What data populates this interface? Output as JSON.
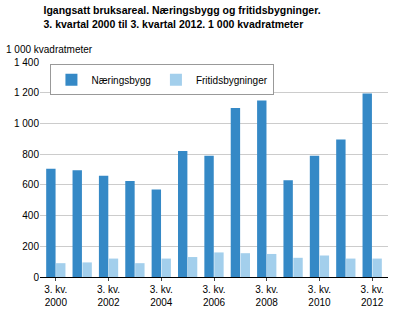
{
  "chart_data": {
    "type": "bar",
    "title": "Igangsatt bruksareal. Næringsbygg og fritidsbygninger.",
    "subtitle": "3. kvartal 2000 til 3. kvartal 2012. 1 000 kvadratmeter",
    "ylabel": "1 000 kvadratmeter",
    "categories": [
      "3. kv.\n2000",
      null,
      "3. kv.\n2002",
      null,
      "3. kv.\n2004",
      null,
      "3. kv.\n2006",
      null,
      "3. kv.\n2008",
      null,
      "3. kv.\n2010",
      null,
      "3. kv.\n2012"
    ],
    "series": [
      {
        "name": "Næringsbygg",
        "color": "#3589c6",
        "values": [
          705,
          695,
          660,
          625,
          570,
          820,
          790,
          1100,
          1150,
          630,
          790,
          895,
          1195
        ]
      },
      {
        "name": "Fritidsbygninger",
        "color": "#a3cfec",
        "values": [
          90,
          95,
          120,
          90,
          120,
          130,
          160,
          155,
          150,
          125,
          140,
          120,
          120
        ]
      }
    ],
    "ylim": [
      0,
      1400
    ],
    "yticks": [
      0,
      200,
      400,
      600,
      800,
      {
        "value": 1000,
        "label": "1 000"
      },
      {
        "value": 1200,
        "label": "1 200"
      },
      {
        "value": 1400,
        "label": "1 400"
      }
    ],
    "grid": true,
    "legend": "top-left"
  }
}
